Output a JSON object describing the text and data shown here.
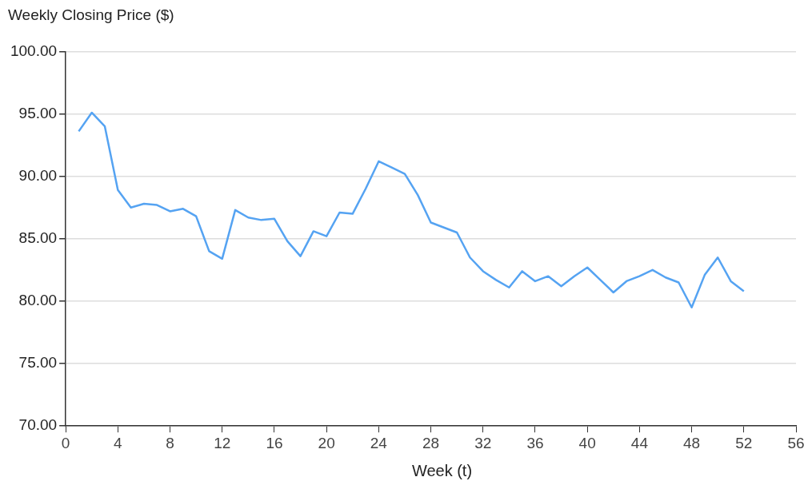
{
  "chart_data": {
    "type": "line",
    "ylabel": "Weekly Closing Price ($)",
    "xlabel": "Week (t)",
    "x": [
      1,
      2,
      3,
      4,
      5,
      6,
      7,
      8,
      9,
      10,
      11,
      12,
      13,
      14,
      15,
      16,
      17,
      18,
      19,
      20,
      21,
      22,
      23,
      24,
      25,
      26,
      27,
      28,
      29,
      30,
      31,
      32,
      33,
      34,
      35,
      36,
      37,
      38,
      39,
      40,
      41,
      42,
      43,
      44,
      45,
      46,
      47,
      48,
      49,
      50,
      51,
      52
    ],
    "series": [
      {
        "color": "#55a3f2",
        "values": [
          93.6,
          95.1,
          94.0,
          88.9,
          87.5,
          87.8,
          87.7,
          87.2,
          87.4,
          86.8,
          84.0,
          83.4,
          87.3,
          86.7,
          86.5,
          86.6,
          84.8,
          83.6,
          85.6,
          85.2,
          87.1,
          87.0,
          89.0,
          91.2,
          90.7,
          90.2,
          88.5,
          86.3,
          85.9,
          85.5,
          83.5,
          82.4,
          81.7,
          81.1,
          82.4,
          81.6,
          82.0,
          81.2,
          82.0,
          82.7,
          81.7,
          80.7,
          81.6,
          82.0,
          82.5,
          81.9,
          81.5,
          79.5,
          82.1,
          83.5,
          81.6,
          80.8
        ]
      }
    ],
    "xlim": [
      0,
      56
    ],
    "xticks": [
      0,
      4,
      8,
      12,
      16,
      20,
      24,
      28,
      32,
      36,
      40,
      44,
      48,
      52,
      56
    ],
    "ylim": [
      70,
      100
    ],
    "yticks": [
      {
        "value": 70,
        "label": "70.00"
      },
      {
        "value": 75,
        "label": "75.00"
      },
      {
        "value": 80,
        "label": "80.00"
      },
      {
        "value": 85,
        "label": "85.00"
      },
      {
        "value": 90,
        "label": "90.00"
      },
      {
        "value": 95,
        "label": "95.00"
      },
      {
        "value": 100,
        "label": "100.00"
      }
    ],
    "grid": "y",
    "marker": "none",
    "line_style": "solid",
    "legend": false
  }
}
